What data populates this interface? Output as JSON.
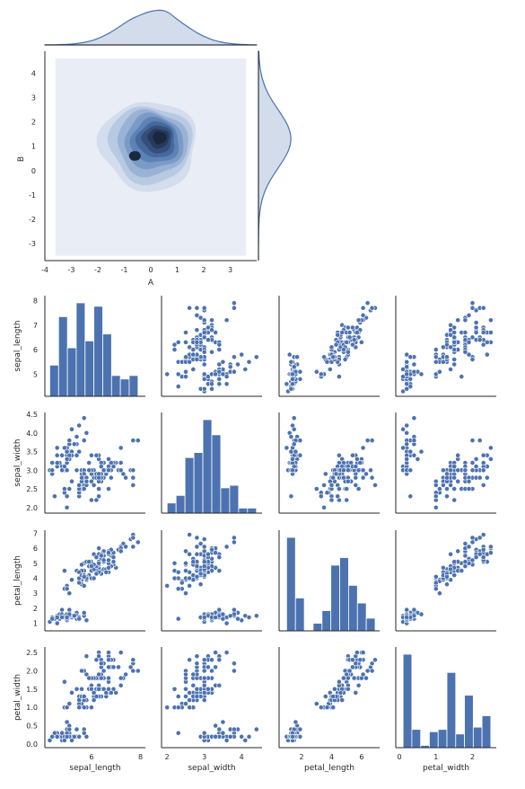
{
  "colors": {
    "primary": "#4C72B0",
    "point_edge": "#ffffff",
    "axis": "#262626",
    "kde_levels": [
      "#e9eef6",
      "#d3dded",
      "#b8c9e2",
      "#9ab3d5",
      "#7b9bc6",
      "#5d82b5",
      "#45699c",
      "#354f7c",
      "#263a5b",
      "#1a273e"
    ]
  },
  "chart_data": [
    {
      "id": "jointplot",
      "type": "kde2d_joint",
      "xlabel": "A",
      "ylabel": "B",
      "xlim": [
        -4,
        4
      ],
      "ylim": [
        -3.7,
        4.9
      ],
      "xticks": [
        -4,
        -3,
        -2,
        -1,
        0,
        1,
        2,
        3
      ],
      "yticks": [
        -3,
        -2,
        -1,
        0,
        1,
        2,
        3,
        4
      ],
      "kde_fill_range": {
        "x": [
          -3.6,
          3.6
        ],
        "y": [
          -3.5,
          4.6
        ]
      },
      "peaks": [
        {
          "x": 0.45,
          "y": 1.45,
          "weight": 1.0
        },
        {
          "x": -0.6,
          "y": 0.6,
          "weight": 0.55
        }
      ],
      "marginal_x": {
        "type": "kde",
        "peak_x": 0.1
      },
      "marginal_y": {
        "type": "kde",
        "peak_y": 1.3
      },
      "grid": false
    },
    {
      "id": "pairplot",
      "type": "pairplot",
      "variables": [
        "sepal_length",
        "sepal_width",
        "petal_length",
        "petal_width"
      ],
      "limits": {
        "sepal_length": [
          4.1,
          8.2
        ],
        "sepal_width": [
          1.85,
          4.55
        ],
        "petal_length": [
          0.5,
          7.2
        ],
        "petal_width": [
          -0.1,
          2.65
        ]
      },
      "ticks": {
        "sepal_length": [
          5,
          6,
          7,
          8
        ],
        "sepal_width": [
          2.0,
          2.5,
          3.0,
          3.5,
          4.0,
          4.5
        ],
        "petal_length": [
          1,
          2,
          3,
          4,
          5,
          6,
          7
        ],
        "petal_width": [
          0.0,
          0.5,
          1.0,
          1.5,
          2.0,
          2.5
        ]
      },
      "xticks": {
        "sepal_length": [
          6,
          8
        ],
        "sepal_width": [
          2,
          3,
          4
        ],
        "petal_length": [
          2,
          4,
          6
        ],
        "petal_width": [
          0,
          1,
          2
        ]
      },
      "tick_text": {
        "sepal_length": [
          "5",
          "6",
          "7",
          "8"
        ],
        "sepal_width": [
          "2.0",
          "2.5",
          "3.0",
          "3.5",
          "4.0",
          "4.5"
        ],
        "petal_length": [
          "1",
          "2",
          "3",
          "4",
          "5",
          "6",
          "7"
        ],
        "petal_width": [
          "0.0",
          "0.5",
          "1.0",
          "1.5",
          "2.0",
          "2.5"
        ]
      },
      "xtick_text": {
        "sepal_length": [
          "6",
          "8"
        ],
        "sepal_width": [
          "2",
          "3",
          "4"
        ],
        "petal_length": [
          "2",
          "4",
          "6"
        ],
        "petal_width": [
          "0",
          "1",
          "2"
        ]
      },
      "histograms": {
        "sepal_length": {
          "edges": [
            4.3,
            4.66,
            5.02,
            5.38,
            5.74,
            6.1,
            6.46,
            6.82,
            7.18,
            7.54,
            7.9
          ],
          "counts": [
            9,
            23,
            14,
            27,
            16,
            26,
            18,
            6,
            5,
            6
          ]
        },
        "sepal_width": {
          "edges": [
            2.0,
            2.24,
            2.48,
            2.72,
            2.96,
            3.2,
            3.44,
            3.68,
            3.92,
            4.16,
            4.4
          ],
          "counts": [
            4,
            7,
            22,
            24,
            37,
            31,
            10,
            11,
            2,
            2
          ]
        },
        "petal_length": {
          "edges": [
            1.0,
            1.59,
            2.18,
            2.77,
            3.36,
            3.95,
            4.54,
            5.13,
            5.72,
            6.31,
            6.9
          ],
          "counts": [
            37,
            13,
            0,
            3,
            8,
            26,
            29,
            18,
            11,
            5
          ]
        },
        "petal_width": {
          "edges": [
            0.1,
            0.34,
            0.58,
            0.82,
            1.06,
            1.3,
            1.54,
            1.78,
            2.02,
            2.26,
            2.5
          ],
          "counts": [
            41,
            8,
            1,
            7,
            8,
            33,
            6,
            23,
            9,
            14
          ]
        }
      },
      "data": [
        [
          5.1,
          3.5,
          1.4,
          0.2
        ],
        [
          4.9,
          3.0,
          1.4,
          0.2
        ],
        [
          4.7,
          3.2,
          1.3,
          0.2
        ],
        [
          4.6,
          3.1,
          1.5,
          0.2
        ],
        [
          5.0,
          3.6,
          1.4,
          0.2
        ],
        [
          5.4,
          3.9,
          1.7,
          0.4
        ],
        [
          4.6,
          3.4,
          1.4,
          0.3
        ],
        [
          5.0,
          3.4,
          1.5,
          0.2
        ],
        [
          4.4,
          2.9,
          1.4,
          0.2
        ],
        [
          4.9,
          3.1,
          1.5,
          0.1
        ],
        [
          5.4,
          3.7,
          1.5,
          0.2
        ],
        [
          4.8,
          3.4,
          1.6,
          0.2
        ],
        [
          4.8,
          3.0,
          1.4,
          0.1
        ],
        [
          4.3,
          3.0,
          1.1,
          0.1
        ],
        [
          5.8,
          4.0,
          1.2,
          0.2
        ],
        [
          5.7,
          4.4,
          1.5,
          0.4
        ],
        [
          5.4,
          3.9,
          1.3,
          0.4
        ],
        [
          5.1,
          3.5,
          1.4,
          0.3
        ],
        [
          5.7,
          3.8,
          1.7,
          0.3
        ],
        [
          5.1,
          3.8,
          1.5,
          0.3
        ],
        [
          5.4,
          3.4,
          1.7,
          0.2
        ],
        [
          5.1,
          3.7,
          1.5,
          0.4
        ],
        [
          4.6,
          3.6,
          1.0,
          0.2
        ],
        [
          5.1,
          3.3,
          1.7,
          0.5
        ],
        [
          4.8,
          3.4,
          1.9,
          0.2
        ],
        [
          5.0,
          3.0,
          1.6,
          0.2
        ],
        [
          5.0,
          3.4,
          1.6,
          0.4
        ],
        [
          5.2,
          3.5,
          1.5,
          0.2
        ],
        [
          5.2,
          3.4,
          1.4,
          0.2
        ],
        [
          4.7,
          3.2,
          1.6,
          0.2
        ],
        [
          4.8,
          3.1,
          1.6,
          0.2
        ],
        [
          5.4,
          3.4,
          1.5,
          0.4
        ],
        [
          5.2,
          4.1,
          1.5,
          0.1
        ],
        [
          5.5,
          4.2,
          1.4,
          0.2
        ],
        [
          4.9,
          3.1,
          1.5,
          0.2
        ],
        [
          5.0,
          3.2,
          1.2,
          0.2
        ],
        [
          5.5,
          3.5,
          1.3,
          0.2
        ],
        [
          4.9,
          3.6,
          1.4,
          0.1
        ],
        [
          4.4,
          3.0,
          1.3,
          0.2
        ],
        [
          5.1,
          3.4,
          1.5,
          0.2
        ],
        [
          5.0,
          3.5,
          1.3,
          0.3
        ],
        [
          4.5,
          2.3,
          1.3,
          0.3
        ],
        [
          4.4,
          3.2,
          1.3,
          0.2
        ],
        [
          5.0,
          3.5,
          1.6,
          0.6
        ],
        [
          5.1,
          3.8,
          1.9,
          0.4
        ],
        [
          4.8,
          3.0,
          1.4,
          0.3
        ],
        [
          5.1,
          3.8,
          1.6,
          0.2
        ],
        [
          4.6,
          3.2,
          1.4,
          0.2
        ],
        [
          5.3,
          3.7,
          1.5,
          0.2
        ],
        [
          5.0,
          3.3,
          1.4,
          0.2
        ],
        [
          7.0,
          3.2,
          4.7,
          1.4
        ],
        [
          6.4,
          3.2,
          4.5,
          1.5
        ],
        [
          6.9,
          3.1,
          4.9,
          1.5
        ],
        [
          5.5,
          2.3,
          4.0,
          1.3
        ],
        [
          6.5,
          2.8,
          4.6,
          1.5
        ],
        [
          5.7,
          2.8,
          4.5,
          1.3
        ],
        [
          6.3,
          3.3,
          4.7,
          1.6
        ],
        [
          4.9,
          2.4,
          3.3,
          1.0
        ],
        [
          6.6,
          2.9,
          4.6,
          1.3
        ],
        [
          5.2,
          2.7,
          3.9,
          1.4
        ],
        [
          5.0,
          2.0,
          3.5,
          1.0
        ],
        [
          5.9,
          3.0,
          4.2,
          1.5
        ],
        [
          6.0,
          2.2,
          4.0,
          1.0
        ],
        [
          6.1,
          2.9,
          4.7,
          1.4
        ],
        [
          5.6,
          2.9,
          3.6,
          1.3
        ],
        [
          6.7,
          3.1,
          4.4,
          1.4
        ],
        [
          5.6,
          3.0,
          4.5,
          1.5
        ],
        [
          5.8,
          2.7,
          4.1,
          1.0
        ],
        [
          6.2,
          2.2,
          4.5,
          1.5
        ],
        [
          5.6,
          2.5,
          3.9,
          1.1
        ],
        [
          5.9,
          3.2,
          4.8,
          1.8
        ],
        [
          6.1,
          2.8,
          4.0,
          1.3
        ],
        [
          6.3,
          2.5,
          4.9,
          1.5
        ],
        [
          6.1,
          2.8,
          4.7,
          1.2
        ],
        [
          6.4,
          2.9,
          4.3,
          1.3
        ],
        [
          6.6,
          3.0,
          4.4,
          1.4
        ],
        [
          6.8,
          2.8,
          4.8,
          1.4
        ],
        [
          6.7,
          3.0,
          5.0,
          1.7
        ],
        [
          6.0,
          2.9,
          4.5,
          1.5
        ],
        [
          5.7,
          2.6,
          3.5,
          1.0
        ],
        [
          5.5,
          2.4,
          3.8,
          1.1
        ],
        [
          5.5,
          2.4,
          3.7,
          1.0
        ],
        [
          5.8,
          2.7,
          3.9,
          1.2
        ],
        [
          6.0,
          2.7,
          5.1,
          1.6
        ],
        [
          5.4,
          3.0,
          4.5,
          1.5
        ],
        [
          6.0,
          3.4,
          4.5,
          1.6
        ],
        [
          6.7,
          3.1,
          4.7,
          1.5
        ],
        [
          6.3,
          2.3,
          4.4,
          1.3
        ],
        [
          5.6,
          3.0,
          4.1,
          1.3
        ],
        [
          5.5,
          2.5,
          4.0,
          1.3
        ],
        [
          5.5,
          2.6,
          4.4,
          1.2
        ],
        [
          6.1,
          3.0,
          4.6,
          1.4
        ],
        [
          5.8,
          2.6,
          4.0,
          1.2
        ],
        [
          5.0,
          2.3,
          3.3,
          1.0
        ],
        [
          5.6,
          2.7,
          4.2,
          1.3
        ],
        [
          5.7,
          3.0,
          4.2,
          1.2
        ],
        [
          5.7,
          2.9,
          4.2,
          1.3
        ],
        [
          6.2,
          2.9,
          4.3,
          1.3
        ],
        [
          5.1,
          2.5,
          3.0,
          1.1
        ],
        [
          5.7,
          2.8,
          4.1,
          1.3
        ],
        [
          6.3,
          3.3,
          6.0,
          2.5
        ],
        [
          5.8,
          2.7,
          5.1,
          1.9
        ],
        [
          7.1,
          3.0,
          5.9,
          2.1
        ],
        [
          6.3,
          2.9,
          5.6,
          1.8
        ],
        [
          6.5,
          3.0,
          5.8,
          2.2
        ],
        [
          7.6,
          3.0,
          6.6,
          2.1
        ],
        [
          4.9,
          2.5,
          4.5,
          1.7
        ],
        [
          7.3,
          2.9,
          6.3,
          1.8
        ],
        [
          6.7,
          2.5,
          5.8,
          1.8
        ],
        [
          7.2,
          3.6,
          6.1,
          2.5
        ],
        [
          6.5,
          3.2,
          5.1,
          2.0
        ],
        [
          6.4,
          2.7,
          5.3,
          1.9
        ],
        [
          6.8,
          3.0,
          5.5,
          2.1
        ],
        [
          5.7,
          2.5,
          5.0,
          2.0
        ],
        [
          5.8,
          2.8,
          5.1,
          2.4
        ],
        [
          6.4,
          3.2,
          5.3,
          2.3
        ],
        [
          6.5,
          3.0,
          5.5,
          1.8
        ],
        [
          7.7,
          3.8,
          6.7,
          2.2
        ],
        [
          7.7,
          2.6,
          6.9,
          2.3
        ],
        [
          6.0,
          2.2,
          5.0,
          1.5
        ],
        [
          6.9,
          3.2,
          5.7,
          2.3
        ],
        [
          5.6,
          2.8,
          4.9,
          2.0
        ],
        [
          7.7,
          2.8,
          6.7,
          2.0
        ],
        [
          6.3,
          2.7,
          4.9,
          1.8
        ],
        [
          6.7,
          3.3,
          5.7,
          2.1
        ],
        [
          7.2,
          3.2,
          6.0,
          1.8
        ],
        [
          6.2,
          2.8,
          4.8,
          1.8
        ],
        [
          6.1,
          3.0,
          4.9,
          1.8
        ],
        [
          6.4,
          2.8,
          5.6,
          2.1
        ],
        [
          7.2,
          3.0,
          5.8,
          1.6
        ],
        [
          7.4,
          2.8,
          6.1,
          1.9
        ],
        [
          7.9,
          3.8,
          6.4,
          2.0
        ],
        [
          6.4,
          2.8,
          5.6,
          2.2
        ],
        [
          6.3,
          2.8,
          5.1,
          1.5
        ],
        [
          6.1,
          2.6,
          5.6,
          1.4
        ],
        [
          7.7,
          3.0,
          6.1,
          2.3
        ],
        [
          6.3,
          3.4,
          5.6,
          2.4
        ],
        [
          6.4,
          3.1,
          5.5,
          1.8
        ],
        [
          6.0,
          3.0,
          4.8,
          1.8
        ],
        [
          6.9,
          3.1,
          5.4,
          2.1
        ],
        [
          6.7,
          3.1,
          5.6,
          2.4
        ],
        [
          6.9,
          3.1,
          5.1,
          2.3
        ],
        [
          5.8,
          2.7,
          5.1,
          1.9
        ],
        [
          6.8,
          3.2,
          5.9,
          2.3
        ],
        [
          6.7,
          3.3,
          5.7,
          2.5
        ],
        [
          6.7,
          3.0,
          5.2,
          2.3
        ],
        [
          6.3,
          2.5,
          5.0,
          1.9
        ],
        [
          6.5,
          3.0,
          5.2,
          2.0
        ],
        [
          6.2,
          3.4,
          5.4,
          2.3
        ],
        [
          5.9,
          3.0,
          5.1,
          1.8
        ]
      ]
    }
  ]
}
